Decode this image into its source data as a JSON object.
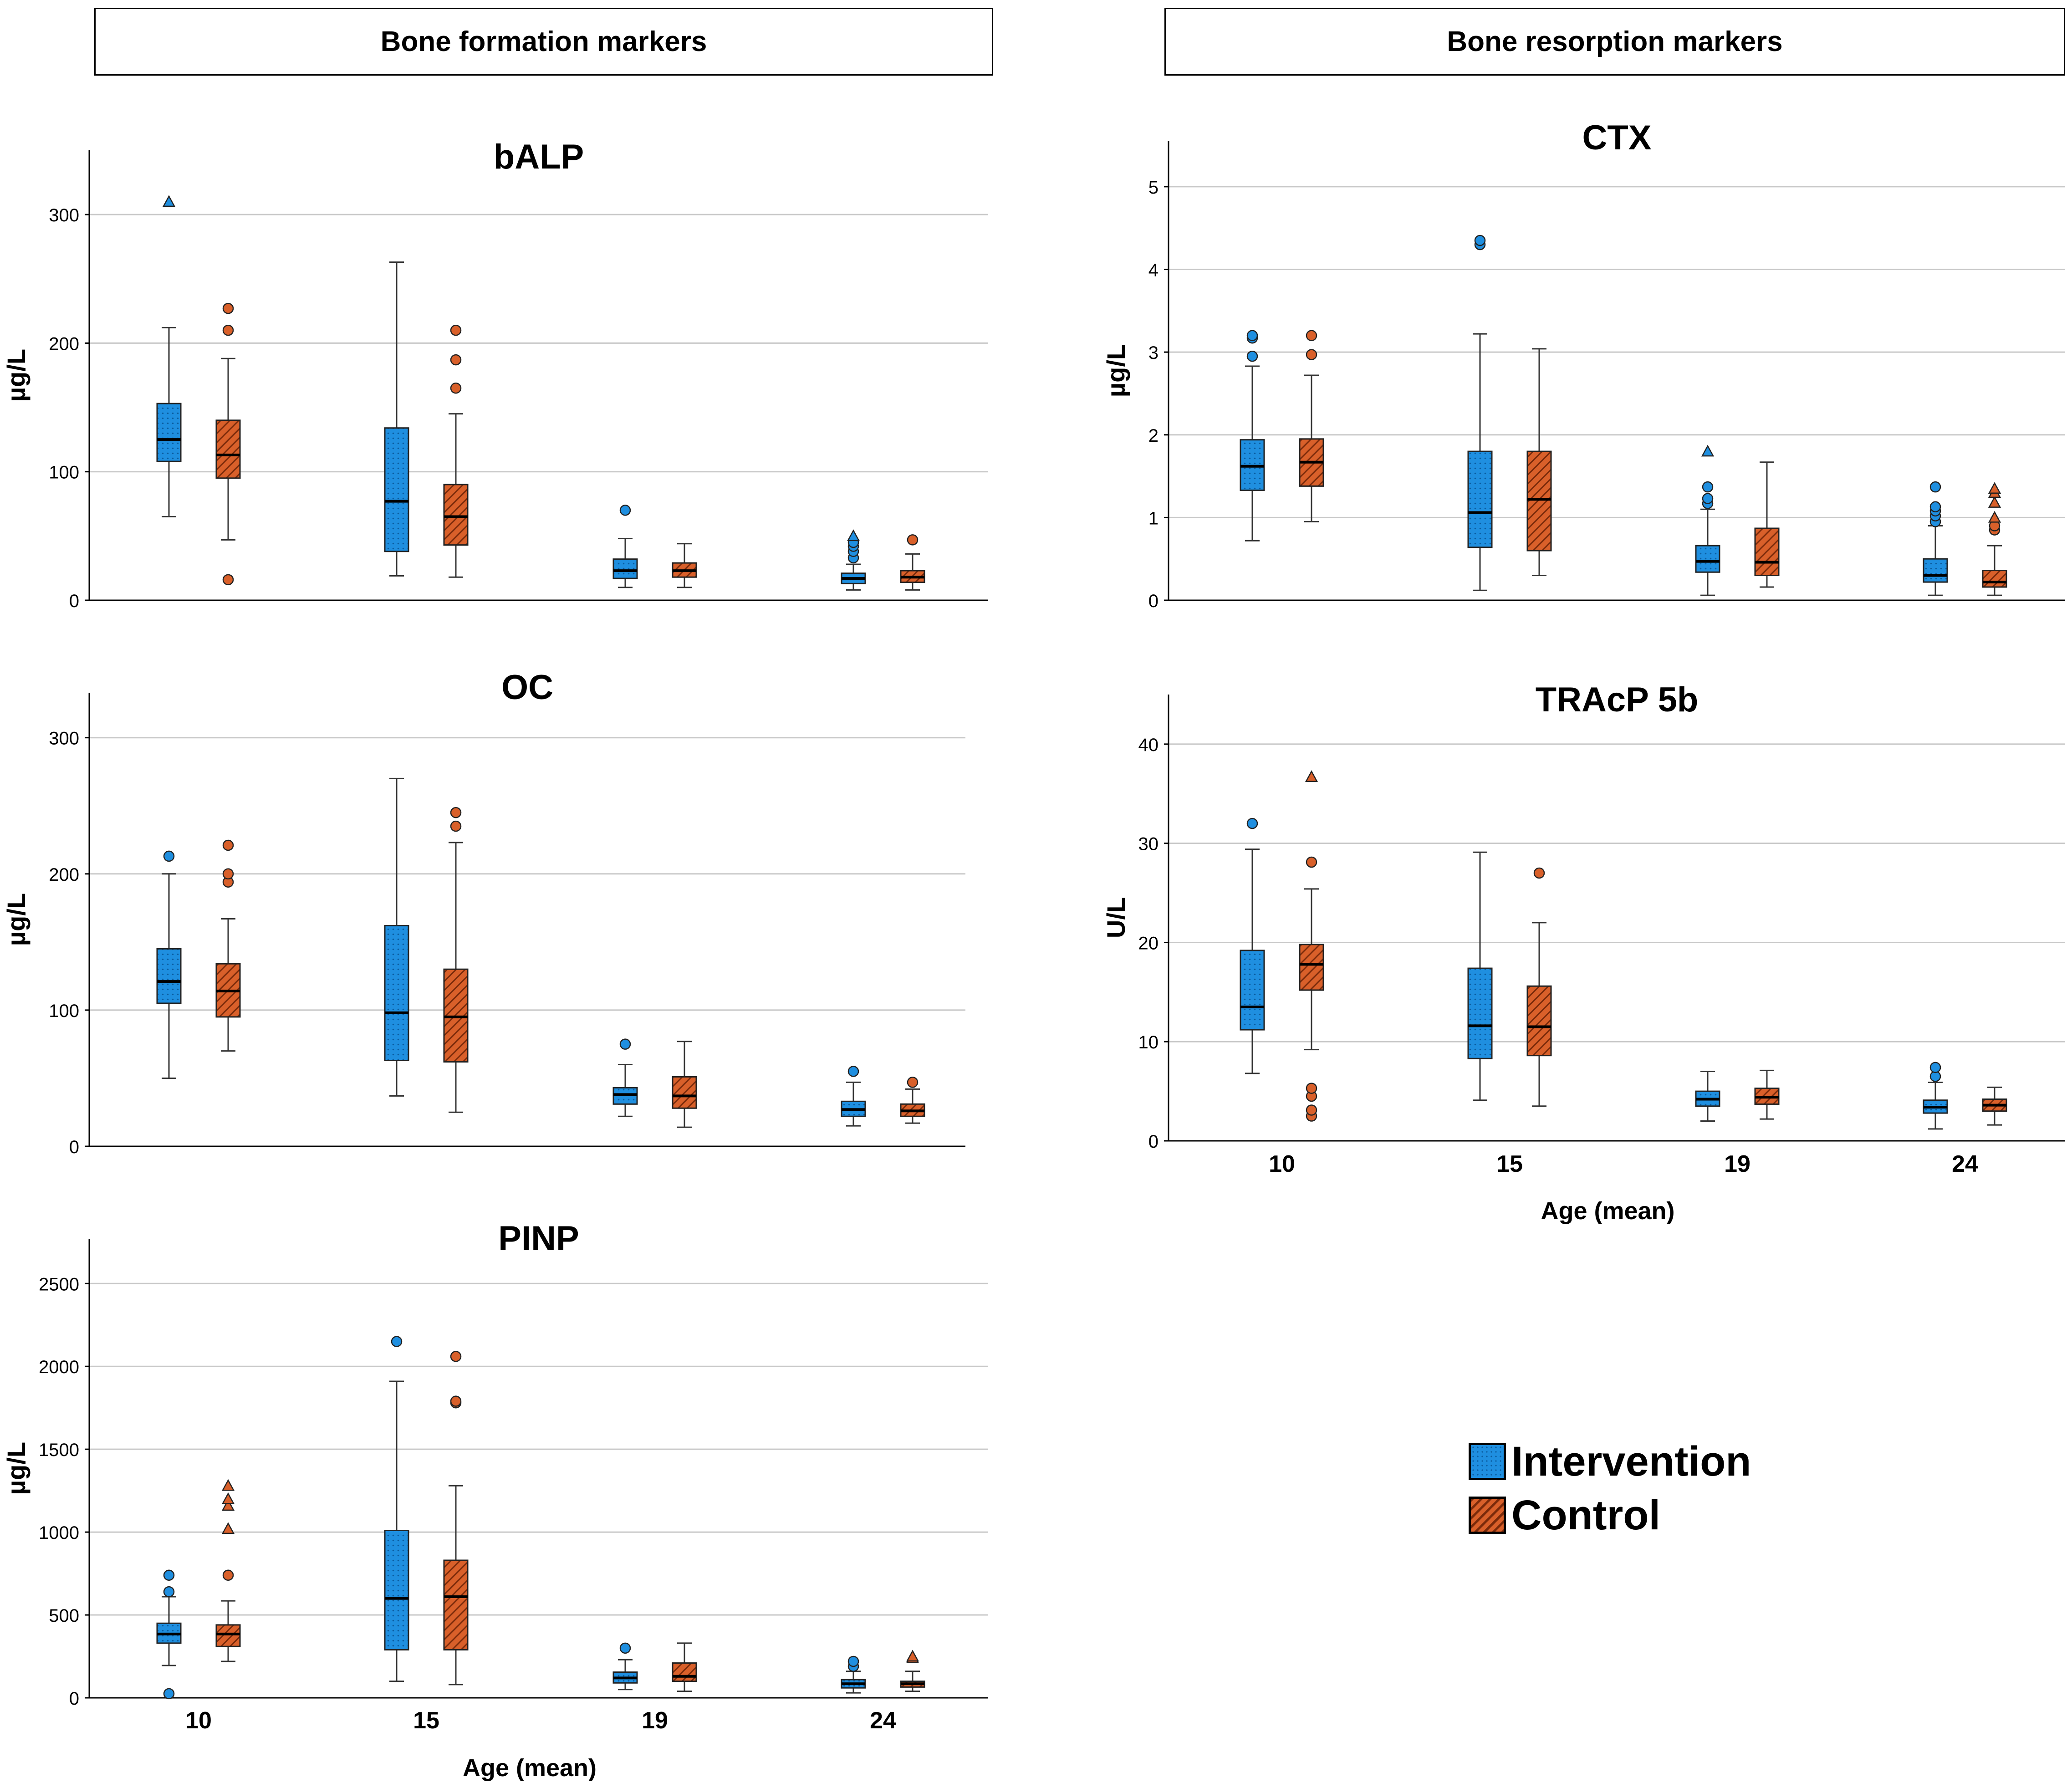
{
  "headers": {
    "left": "Bone formation markers",
    "right": "Bone resorption markers"
  },
  "legend": [
    {
      "name": "Intervention",
      "color": "#1f8fe0"
    },
    {
      "name": "Control",
      "color": "#d9602a"
    }
  ],
  "x_axis_label": "Age (mean)",
  "colors": {
    "intervention_fill": "#1f8fe0",
    "intervention_dot": "#0b5da0",
    "control_fill": "#d9602a",
    "control_hatch": "#7a2a0a",
    "grid": "#c8c8c8"
  },
  "chart_data": [
    {
      "id": "balp",
      "type": "box",
      "title": "bALP",
      "ylabel": "µg/L",
      "xlabel": "",
      "ylim": [
        0,
        350
      ],
      "yticks": [
        0,
        100,
        200,
        300
      ],
      "categories": [
        "10",
        "15",
        "19",
        "24"
      ],
      "show_x_ticklabels": false,
      "series": [
        {
          "name": "Intervention",
          "boxes": [
            {
              "whisker_low": 65,
              "q1": 108,
              "median": 125,
              "q3": 153,
              "whisker_high": 212,
              "outliers": [],
              "extremes": [
                310
              ]
            },
            {
              "whisker_low": 19,
              "q1": 38,
              "median": 77,
              "q3": 134,
              "whisker_high": 263,
              "outliers": [],
              "extremes": []
            },
            {
              "whisker_low": 10,
              "q1": 17,
              "median": 23,
              "q3": 32,
              "whisker_high": 48,
              "outliers": [
                70
              ],
              "extremes": []
            },
            {
              "whisker_low": 8,
              "q1": 13,
              "median": 17,
              "q3": 21,
              "whisker_high": 28,
              "outliers": [
                33,
                38,
                42,
                45
              ],
              "extremes": [
                50
              ]
            }
          ]
        },
        {
          "name": "Control",
          "boxes": [
            {
              "whisker_low": 47,
              "q1": 95,
              "median": 113,
              "q3": 140,
              "whisker_high": 188,
              "outliers": [
                16,
                210,
                227
              ],
              "extremes": []
            },
            {
              "whisker_low": 18,
              "q1": 43,
              "median": 65,
              "q3": 90,
              "whisker_high": 145,
              "outliers": [
                165,
                187,
                210
              ],
              "extremes": []
            },
            {
              "whisker_low": 10,
              "q1": 18,
              "median": 23,
              "q3": 29,
              "whisker_high": 44,
              "outliers": [],
              "extremes": []
            },
            {
              "whisker_low": 8,
              "q1": 14,
              "median": 18,
              "q3": 23,
              "whisker_high": 36,
              "outliers": [
                47
              ],
              "extremes": []
            }
          ]
        }
      ]
    },
    {
      "id": "oc",
      "type": "box",
      "title": "OC",
      "ylabel": "µg/L",
      "xlabel": "",
      "ylim": [
        0,
        333
      ],
      "yticks": [
        0,
        100,
        200,
        300
      ],
      "categories": [
        "10",
        "15",
        "19",
        "24"
      ],
      "show_x_ticklabels": false,
      "series": [
        {
          "name": "Intervention",
          "boxes": [
            {
              "whisker_low": 50,
              "q1": 105,
              "median": 121,
              "q3": 145,
              "whisker_high": 200,
              "outliers": [
                213
              ],
              "extremes": []
            },
            {
              "whisker_low": 37,
              "q1": 63,
              "median": 98,
              "q3": 162,
              "whisker_high": 270,
              "outliers": [],
              "extremes": []
            },
            {
              "whisker_low": 22,
              "q1": 31,
              "median": 38,
              "q3": 43,
              "whisker_high": 60,
              "outliers": [
                75
              ],
              "extremes": []
            },
            {
              "whisker_low": 15,
              "q1": 22,
              "median": 27,
              "q3": 33,
              "whisker_high": 47,
              "outliers": [
                55
              ],
              "extremes": []
            }
          ]
        },
        {
          "name": "Control",
          "boxes": [
            {
              "whisker_low": 70,
              "q1": 95,
              "median": 114,
              "q3": 134,
              "whisker_high": 167,
              "outliers": [
                194,
                200,
                221
              ],
              "extremes": []
            },
            {
              "whisker_low": 25,
              "q1": 62,
              "median": 95,
              "q3": 130,
              "whisker_high": 223,
              "outliers": [
                235,
                245
              ],
              "extremes": []
            },
            {
              "whisker_low": 14,
              "q1": 28,
              "median": 37,
              "q3": 51,
              "whisker_high": 77,
              "outliers": [],
              "extremes": []
            },
            {
              "whisker_low": 17,
              "q1": 22,
              "median": 26,
              "q3": 31,
              "whisker_high": 42,
              "outliers": [
                47
              ],
              "extremes": []
            }
          ]
        }
      ]
    },
    {
      "id": "pinp",
      "type": "box",
      "title": "PINP",
      "ylabel": "µg/L",
      "xlabel": "Age (mean)",
      "ylim": [
        0,
        2770
      ],
      "yticks": [
        0,
        500,
        1000,
        1500,
        2000,
        2500
      ],
      "categories": [
        "10",
        "15",
        "19",
        "24"
      ],
      "show_x_ticklabels": true,
      "series": [
        {
          "name": "Intervention",
          "boxes": [
            {
              "whisker_low": 195,
              "q1": 330,
              "median": 385,
              "q3": 450,
              "whisker_high": 610,
              "outliers": [
                25,
                640,
                740
              ],
              "extremes": []
            },
            {
              "whisker_low": 100,
              "q1": 290,
              "median": 600,
              "q3": 1010,
              "whisker_high": 1910,
              "outliers": [
                2150
              ],
              "extremes": []
            },
            {
              "whisker_low": 50,
              "q1": 90,
              "median": 120,
              "q3": 155,
              "whisker_high": 230,
              "outliers": [
                300
              ],
              "extremes": []
            },
            {
              "whisker_low": 30,
              "q1": 60,
              "median": 85,
              "q3": 110,
              "whisker_high": 160,
              "outliers": [
                190,
                220
              ],
              "extremes": []
            }
          ]
        },
        {
          "name": "Control",
          "boxes": [
            {
              "whisker_low": 220,
              "q1": 310,
              "median": 385,
              "q3": 440,
              "whisker_high": 585,
              "outliers": [
                740
              ],
              "extremes": [
                1020,
                1160,
                1200,
                1280
              ]
            },
            {
              "whisker_low": 80,
              "q1": 290,
              "median": 610,
              "q3": 830,
              "whisker_high": 1280,
              "outliers": [
                1780,
                1790,
                2060
              ],
              "extremes": []
            },
            {
              "whisker_low": 40,
              "q1": 100,
              "median": 130,
              "q3": 210,
              "whisker_high": 330,
              "outliers": [],
              "extremes": []
            },
            {
              "whisker_low": 40,
              "q1": 65,
              "median": 85,
              "q3": 100,
              "whisker_high": 160,
              "outliers": [],
              "extremes": [
                240,
                250
              ]
            }
          ]
        }
      ]
    },
    {
      "id": "ctx",
      "type": "box",
      "title": "CTX",
      "ylabel": "µg/L",
      "xlabel": "",
      "ylim": [
        0,
        5.55
      ],
      "yticks": [
        0,
        1,
        2,
        3,
        4,
        5
      ],
      "categories": [
        "10",
        "15",
        "19",
        "24"
      ],
      "show_x_ticklabels": false,
      "series": [
        {
          "name": "Intervention",
          "boxes": [
            {
              "whisker_low": 0.72,
              "q1": 1.33,
              "median": 1.62,
              "q3": 1.94,
              "whisker_high": 2.83,
              "outliers": [
                2.95,
                3.17,
                3.2
              ],
              "extremes": []
            },
            {
              "whisker_low": 0.12,
              "q1": 0.64,
              "median": 1.06,
              "q3": 1.8,
              "whisker_high": 3.22,
              "outliers": [
                4.3,
                4.35
              ],
              "extremes": []
            },
            {
              "whisker_low": 0.06,
              "q1": 0.34,
              "median": 0.47,
              "q3": 0.66,
              "whisker_high": 1.1,
              "outliers": [
                1.17,
                1.23,
                1.37
              ],
              "extremes": [
                1.8
              ]
            },
            {
              "whisker_low": 0.06,
              "q1": 0.22,
              "median": 0.3,
              "q3": 0.5,
              "whisker_high": 0.9,
              "outliers": [
                0.95,
                1.02,
                1.08,
                1.13,
                1.37
              ],
              "extremes": []
            }
          ]
        },
        {
          "name": "Control",
          "boxes": [
            {
              "whisker_low": 0.95,
              "q1": 1.38,
              "median": 1.67,
              "q3": 1.95,
              "whisker_high": 2.72,
              "outliers": [
                2.97,
                3.2
              ],
              "extremes": []
            },
            {
              "whisker_low": 0.3,
              "q1": 0.6,
              "median": 1.22,
              "q3": 1.8,
              "whisker_high": 3.04,
              "outliers": [],
              "extremes": []
            },
            {
              "whisker_low": 0.16,
              "q1": 0.3,
              "median": 0.46,
              "q3": 0.87,
              "whisker_high": 1.67,
              "outliers": [],
              "extremes": []
            },
            {
              "whisker_low": 0.06,
              "q1": 0.16,
              "median": 0.22,
              "q3": 0.36,
              "whisker_high": 0.66,
              "outliers": [
                0.85,
                0.9
              ],
              "extremes": [
                1.0,
                1.18,
                1.3,
                1.35
              ]
            }
          ]
        }
      ]
    },
    {
      "id": "tracp",
      "type": "box",
      "title": "TRAcP 5b",
      "ylabel": "U/L",
      "xlabel": "Age (mean)",
      "ylim": [
        0,
        45
      ],
      "yticks": [
        0,
        10,
        20,
        30,
        40
      ],
      "categories": [
        "10",
        "15",
        "19",
        "24"
      ],
      "show_x_ticklabels": true,
      "series": [
        {
          "name": "Intervention",
          "boxes": [
            {
              "whisker_low": 6.8,
              "q1": 11.2,
              "median": 13.5,
              "q3": 19.2,
              "whisker_high": 29.4,
              "outliers": [
                32
              ],
              "extremes": []
            },
            {
              "whisker_low": 4.1,
              "q1": 8.3,
              "median": 11.6,
              "q3": 17.4,
              "whisker_high": 29.1,
              "outliers": [],
              "extremes": []
            },
            {
              "whisker_low": 2.0,
              "q1": 3.5,
              "median": 4.2,
              "q3": 5.0,
              "whisker_high": 7.0,
              "outliers": [],
              "extremes": []
            },
            {
              "whisker_low": 1.2,
              "q1": 2.8,
              "median": 3.4,
              "q3": 4.1,
              "whisker_high": 5.9,
              "outliers": [
                6.5,
                7.4
              ],
              "extremes": []
            }
          ]
        },
        {
          "name": "Control",
          "boxes": [
            {
              "whisker_low": 9.2,
              "q1": 15.2,
              "median": 17.8,
              "q3": 19.8,
              "whisker_high": 25.4,
              "outliers": [
                2.5,
                3.1,
                4.5,
                5.3,
                28.1
              ],
              "extremes": [
                36.7
              ]
            },
            {
              "whisker_low": 3.5,
              "q1": 8.6,
              "median": 11.5,
              "q3": 15.6,
              "whisker_high": 22.0,
              "outliers": [
                27
              ],
              "extremes": []
            },
            {
              "whisker_low": 2.2,
              "q1": 3.7,
              "median": 4.4,
              "q3": 5.3,
              "whisker_high": 7.1,
              "outliers": [],
              "extremes": []
            },
            {
              "whisker_low": 1.6,
              "q1": 3.0,
              "median": 3.6,
              "q3": 4.2,
              "whisker_high": 5.4,
              "outliers": [],
              "extremes": []
            }
          ]
        }
      ]
    }
  ]
}
